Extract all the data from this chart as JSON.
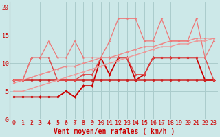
{
  "background_color": "#cce8e8",
  "grid_color": "#aacccc",
  "xlabel": "Vent moyen/en rafales ( km/h )",
  "xlabel_color": "#cc0000",
  "xlabel_fontsize": 7,
  "tick_color": "#cc0000",
  "tick_fontsize": 6,
  "xlim": [
    -0.5,
    23.5
  ],
  "ylim": [
    0,
    21
  ],
  "yticks": [
    0,
    5,
    10,
    15,
    20
  ],
  "xticks": [
    0,
    1,
    2,
    3,
    4,
    5,
    6,
    7,
    8,
    9,
    10,
    11,
    12,
    13,
    14,
    15,
    16,
    17,
    18,
    19,
    20,
    21,
    22,
    23
  ],
  "lines": [
    {
      "x": [
        0,
        1,
        2,
        3,
        4,
        5,
        6,
        7,
        8,
        9,
        10,
        11,
        12,
        13,
        14,
        15,
        16,
        17,
        18,
        19,
        20,
        21,
        22,
        23
      ],
      "y": [
        4,
        4,
        4,
        4,
        4,
        4,
        5,
        4,
        6,
        6,
        11,
        8,
        11,
        11,
        7,
        8,
        11,
        11,
        11,
        11,
        11,
        11,
        7,
        7
      ],
      "color": "#cc0000",
      "lw": 1.3,
      "marker": "D",
      "markersize": 2.0
    },
    {
      "x": [
        0,
        1,
        2,
        3,
        4,
        5,
        6,
        7,
        8,
        9,
        10,
        11,
        12,
        13,
        14,
        15,
        16,
        17,
        18,
        19,
        20,
        21,
        22,
        23
      ],
      "y": [
        7,
        7,
        7,
        7,
        7,
        7,
        7,
        7,
        7,
        7,
        7,
        7,
        7,
        7,
        7,
        7,
        7,
        7,
        7,
        7,
        7,
        7,
        7,
        7
      ],
      "color": "#cc2222",
      "lw": 1.1,
      "marker": "D",
      "markersize": 1.8
    },
    {
      "x": [
        0,
        1,
        2,
        3,
        4,
        5,
        6,
        7,
        8,
        9,
        10,
        11,
        12,
        13,
        14,
        15,
        16,
        17,
        18,
        19,
        20,
        21,
        22,
        23
      ],
      "y": [
        7,
        7,
        11,
        11,
        11,
        7,
        7,
        7,
        8,
        8,
        11,
        11,
        11,
        11,
        8,
        8,
        11,
        11,
        11,
        11,
        11,
        11,
        11,
        7
      ],
      "color": "#dd4444",
      "lw": 1.0,
      "marker": "D",
      "markersize": 1.8
    },
    {
      "x": [
        0,
        1,
        2,
        3,
        4,
        5,
        6,
        7,
        8,
        9,
        10,
        11,
        12,
        13,
        14,
        15,
        16,
        17,
        18,
        19,
        20,
        21,
        22,
        23
      ],
      "y": [
        5,
        5,
        5.5,
        6,
        6.5,
        7,
        7.5,
        8,
        8.5,
        9,
        9.5,
        10,
        10.5,
        11,
        11.5,
        12,
        12.5,
        13,
        13,
        13.5,
        13.5,
        14,
        14,
        14.5
      ],
      "color": "#ee9999",
      "lw": 1.0,
      "marker": "D",
      "markersize": 1.5
    },
    {
      "x": [
        0,
        1,
        2,
        3,
        4,
        5,
        6,
        7,
        8,
        9,
        10,
        11,
        12,
        13,
        14,
        15,
        16,
        17,
        18,
        19,
        20,
        21,
        22,
        23
      ],
      "y": [
        6.5,
        7,
        7.5,
        8,
        8.5,
        9,
        9.5,
        9.5,
        10,
        10.5,
        11,
        11,
        11.5,
        12,
        12.5,
        13,
        13,
        13.5,
        14,
        14,
        14,
        14.5,
        14.5,
        14.5
      ],
      "color": "#ee8888",
      "lw": 1.0,
      "marker": "D",
      "markersize": 1.5
    },
    {
      "x": [
        0,
        1,
        2,
        3,
        4,
        5,
        6,
        7,
        8,
        9,
        10,
        11,
        12,
        13,
        14,
        15,
        16,
        17,
        18,
        19,
        20,
        21,
        22,
        23
      ],
      "y": [
        7,
        7,
        11,
        11,
        14,
        11,
        11,
        14,
        11,
        11,
        11,
        14,
        18,
        18,
        18,
        14,
        14,
        18,
        14,
        14,
        14,
        18,
        11,
        14
      ],
      "color": "#ee7777",
      "lw": 0.9,
      "marker": "D",
      "markersize": 1.5
    }
  ],
  "axisline_color": "#cc0000",
  "left_spine_color": "#888888"
}
